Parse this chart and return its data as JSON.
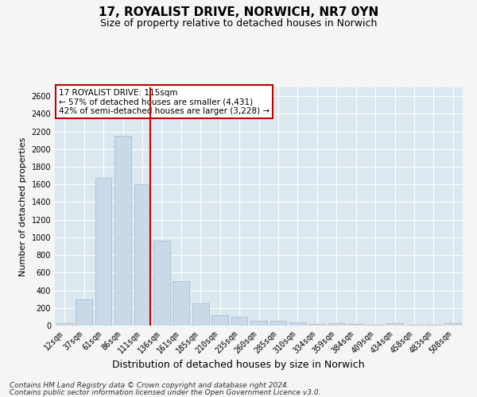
{
  "title_line1": "17, ROYALIST DRIVE, NORWICH, NR7 0YN",
  "title_line2": "Size of property relative to detached houses in Norwich",
  "xlabel": "Distribution of detached houses by size in Norwich",
  "ylabel": "Number of detached properties",
  "categories": [
    "12sqm",
    "37sqm",
    "61sqm",
    "86sqm",
    "111sqm",
    "136sqm",
    "161sqm",
    "185sqm",
    "210sqm",
    "235sqm",
    "260sqm",
    "285sqm",
    "310sqm",
    "334sqm",
    "359sqm",
    "384sqm",
    "409sqm",
    "434sqm",
    "458sqm",
    "483sqm",
    "508sqm"
  ],
  "values": [
    25,
    300,
    1670,
    2150,
    1600,
    960,
    505,
    250,
    120,
    100,
    50,
    50,
    35,
    20,
    30,
    20,
    5,
    25,
    5,
    5,
    25
  ],
  "bar_color": "#c9d9e8",
  "bar_edge_color": "#a0b8cc",
  "highlight_index": 4,
  "highlight_color": "#c00000",
  "annotation_text": "17 ROYALIST DRIVE: 115sqm\n← 57% of detached houses are smaller (4,431)\n42% of semi-detached houses are larger (3,228) →",
  "annotation_box_color": "#ffffff",
  "annotation_box_edge_color": "#c00000",
  "ylim": [
    0,
    2700
  ],
  "yticks": [
    0,
    200,
    400,
    600,
    800,
    1000,
    1200,
    1400,
    1600,
    1800,
    2000,
    2200,
    2400,
    2600
  ],
  "footer_line1": "Contains HM Land Registry data © Crown copyright and database right 2024.",
  "footer_line2": "Contains public sector information licensed under the Open Government Licence v3.0.",
  "bg_color": "#dce8f0",
  "grid_color": "#ffffff",
  "fig_bg_color": "#f5f5f5",
  "title1_fontsize": 11,
  "title2_fontsize": 9,
  "xlabel_fontsize": 9,
  "ylabel_fontsize": 8,
  "tick_fontsize": 7,
  "annotation_fontsize": 7.5,
  "footer_fontsize": 6.5
}
